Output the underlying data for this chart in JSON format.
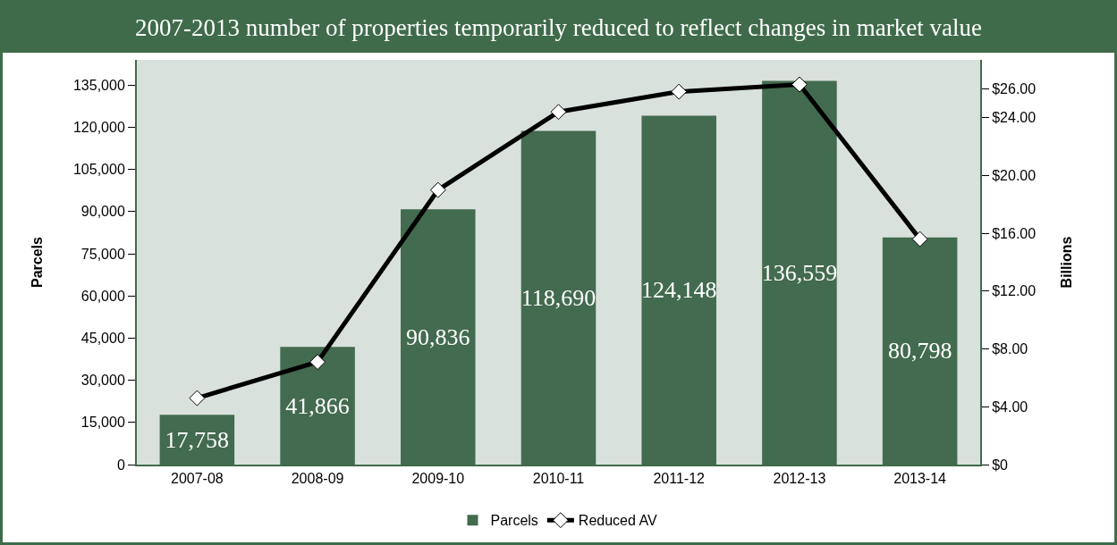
{
  "chart_data": {
    "type": "bar",
    "title": "2007-2013 number of properties temporarily reduced to reflect changes in market value",
    "ylabel": "Parcels",
    "y2label": "Billions",
    "categories": [
      "2007-08",
      "2008-09",
      "2009-10",
      "2010-11",
      "2011-12",
      "2012-13",
      "2013-14"
    ],
    "series": [
      {
        "name": "Parcels",
        "color": "#436b4f",
        "values": [
          17758,
          41866,
          90836,
          118690,
          124148,
          136559,
          80798
        ],
        "value_labels": [
          "17,758",
          "41,866",
          "90,836",
          "118,690",
          "124,148",
          "136,559",
          "80,798"
        ]
      },
      {
        "name": "Reduced AV",
        "type": "line",
        "axis": "y2",
        "color": "#000000",
        "marker": "diamond",
        "values": [
          4.6,
          7.1,
          19.0,
          24.4,
          25.8,
          26.3,
          15.6
        ]
      }
    ],
    "ylim": [
      0,
      144000
    ],
    "yticks": [
      {
        "value": 0,
        "label": "0"
      },
      {
        "value": 15000,
        "label": "15,000"
      },
      {
        "value": 30000,
        "label": "30,000"
      },
      {
        "value": 45000,
        "label": "45,000"
      },
      {
        "value": 60000,
        "label": "60,000"
      },
      {
        "value": 75000,
        "label": "75,000"
      },
      {
        "value": 90000,
        "label": "90,000"
      },
      {
        "value": 105000,
        "label": "105,000"
      },
      {
        "value": 120000,
        "label": "120,000"
      },
      {
        "value": 135000,
        "label": "135,000"
      }
    ],
    "y2lim": [
      0,
      28
    ],
    "y2ticks": [
      {
        "value": 0,
        "label": "$0"
      },
      {
        "value": 4,
        "label": "$4.00"
      },
      {
        "value": 8,
        "label": "$8.00"
      },
      {
        "value": 12,
        "label": "$12.00"
      },
      {
        "value": 16,
        "label": "$16.00"
      },
      {
        "value": 20,
        "label": "$20.00"
      },
      {
        "value": 24,
        "label": "$24.00"
      },
      {
        "value": 26,
        "label": "$26.00"
      }
    ],
    "grid": false,
    "legend": "bottom"
  }
}
